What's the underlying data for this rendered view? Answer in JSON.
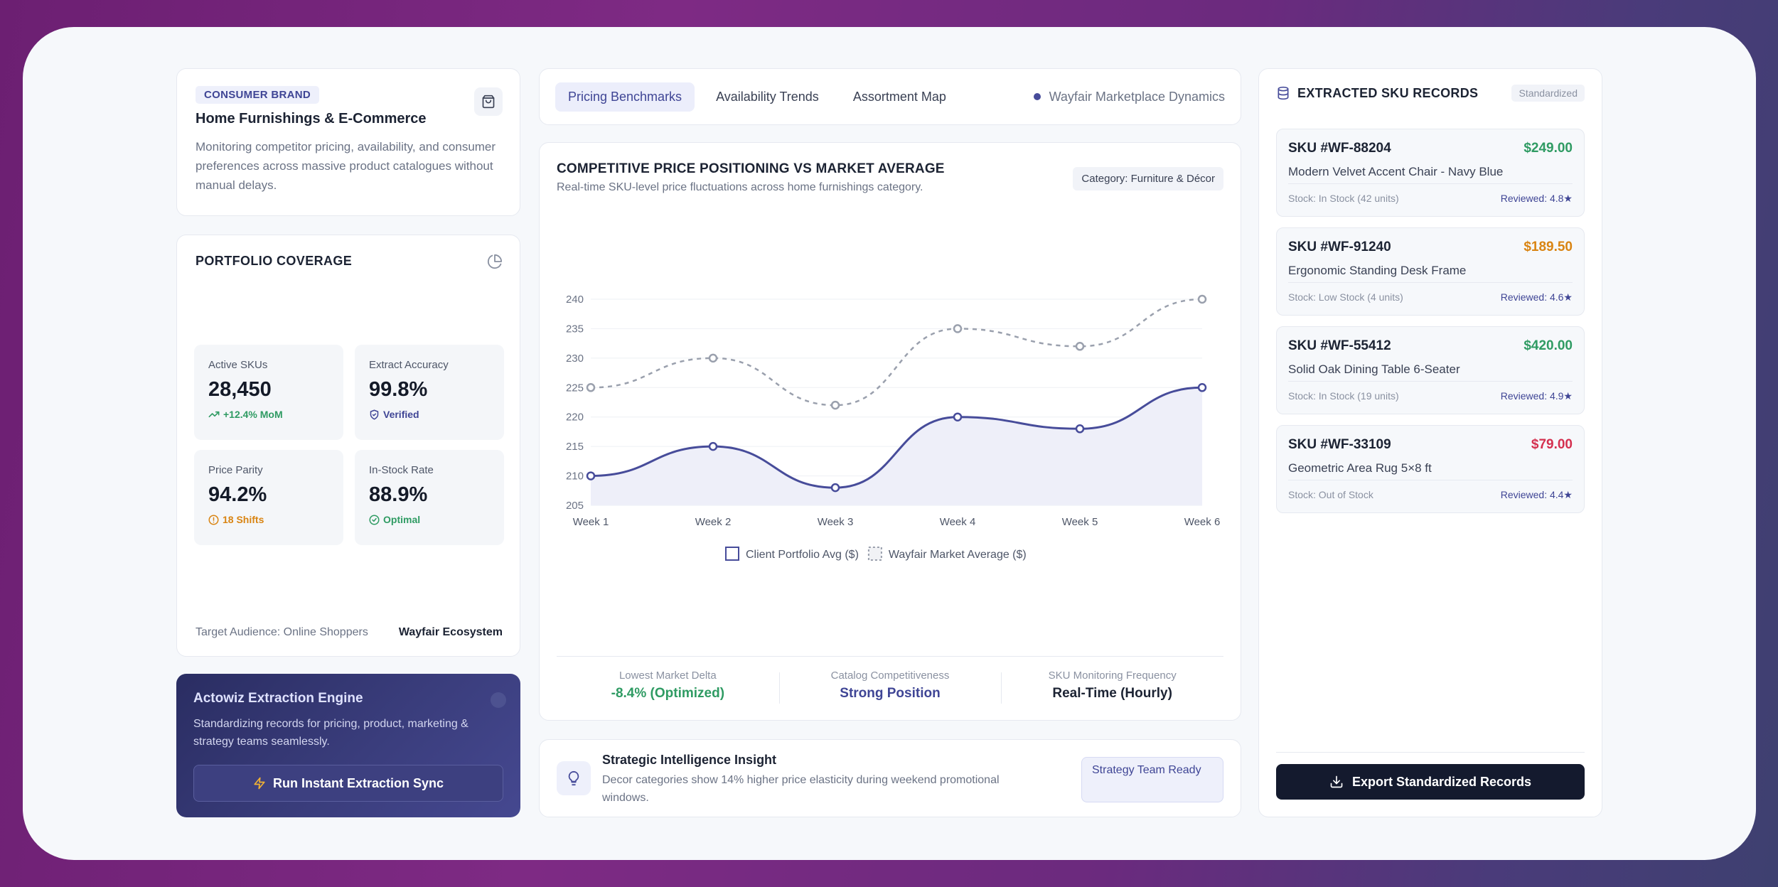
{
  "brand": {
    "badge": "CONSUMER BRAND",
    "title": "Home Furnishings & E-Commerce",
    "description": "Monitoring competitor pricing, availability, and consumer preferences across massive product catalogues without manual delays.",
    "icon": "shopping-bag-icon"
  },
  "portfolio": {
    "title": "PORTFOLIO COVERAGE",
    "stats": [
      {
        "label": "Active SKUs",
        "value": "28,450",
        "sub": "+12.4% MoM",
        "tone": "green",
        "icon": "trend-up-icon"
      },
      {
        "label": "Extract Accuracy",
        "value": "99.8%",
        "sub": "Verified",
        "tone": "green",
        "icon": "shield-check-icon"
      },
      {
        "label": "Price Parity",
        "value": "94.2%",
        "sub": "18 Shifts",
        "tone": "orange",
        "icon": "alert-circle-icon"
      },
      {
        "label": "In-Stock Rate",
        "value": "88.9%",
        "sub": "Optimal",
        "tone": "green",
        "icon": "check-circle-icon"
      }
    ],
    "audience_label": "Target Audience: Online Shoppers",
    "ecosystem": "Wayfair Ecosystem"
  },
  "engine": {
    "title": "Actowiz Extraction Engine",
    "description": "Standardizing records for pricing, product, marketing & strategy teams seamlessly.",
    "button_label": "Run Instant Extraction Sync"
  },
  "tabs": {
    "items": [
      "Pricing Benchmarks",
      "Availability Trends",
      "Assortment Map"
    ],
    "active": 0,
    "market": "Wayfair Marketplace Dynamics"
  },
  "chart": {
    "title": "COMPETITIVE PRICE POSITIONING VS MARKET AVERAGE",
    "subtitle": "Real-time SKU-level price fluctuations across home furnishings category.",
    "category_tag": "Category: Furniture & Décor"
  },
  "chart_data": {
    "type": "line",
    "x": [
      "Week 1",
      "Week 2",
      "Week 3",
      "Week 4",
      "Week 5",
      "Week 6"
    ],
    "series": [
      {
        "name": "Client Portfolio Avg ($)",
        "values": [
          210,
          215,
          208,
          220,
          218,
          225
        ],
        "color": "#474c9a",
        "style": "solid",
        "fill": true
      },
      {
        "name": "Wayfair Market Average ($)",
        "values": [
          225,
          230,
          222,
          235,
          232,
          240
        ],
        "color": "#9aa0ad",
        "style": "dashed",
        "fill": false
      }
    ],
    "ylim": [
      205,
      240
    ],
    "yticks": [
      205,
      210,
      215,
      220,
      225,
      230,
      235,
      240
    ],
    "grid": true,
    "legend_position": "bottom"
  },
  "chart_footer": [
    {
      "label": "Lowest Market Delta",
      "value": "-8.4% (Optimized)",
      "color": "#2f9b63"
    },
    {
      "label": "Catalog Competitiveness",
      "value": "Strong Position",
      "color": "#3f4595"
    },
    {
      "label": "SKU Monitoring Frequency",
      "value": "Real-Time (Hourly)",
      "color": "#1c2333"
    }
  ],
  "insight": {
    "title": "Strategic Intelligence Insight",
    "text": "Decor categories show 14% higher price elasticity during weekend promotional windows.",
    "status": "Strategy Team Ready"
  },
  "records": {
    "title": "EXTRACTED SKU RECORDS",
    "tag": "Standardized",
    "items": [
      {
        "sku": "SKU #WF-88204",
        "price": "$249.00",
        "price_color": "#2f9b63",
        "name": "Modern Velvet Accent Chair - Navy Blue",
        "stock": "Stock: In Stock (42 units)",
        "review": "Reviewed: 4.8★"
      },
      {
        "sku": "SKU #WF-91240",
        "price": "$189.50",
        "price_color": "#d98412",
        "name": "Ergonomic Standing Desk Frame",
        "stock": "Stock: Low Stock (4 units)",
        "review": "Reviewed: 4.6★"
      },
      {
        "sku": "SKU #WF-55412",
        "price": "$420.00",
        "price_color": "#2f9b63",
        "name": "Solid Oak Dining Table 6-Seater",
        "stock": "Stock: In Stock (19 units)",
        "review": "Reviewed: 4.9★"
      },
      {
        "sku": "SKU #WF-33109",
        "price": "$79.00",
        "price_color": "#d4304f",
        "name": "Geometric Area Rug 5×8 ft",
        "stock": "Stock: Out of Stock",
        "review": "Reviewed: 4.4★"
      }
    ],
    "export_label": "Export Standardized Records"
  }
}
